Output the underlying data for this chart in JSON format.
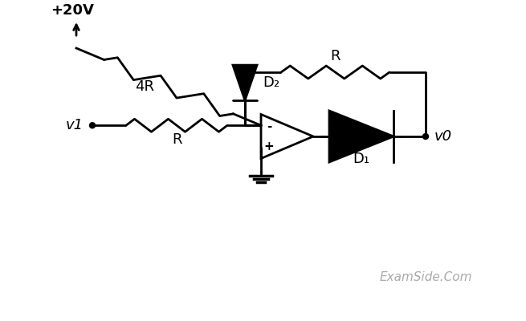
{
  "bg_color": "#ffffff",
  "line_color": "#000000",
  "text_color": "#000000",
  "watermark_color": "#aaaaaa",
  "title": "+20V",
  "label_4R": "4R",
  "label_R_horiz": "R",
  "label_R_feedback": "R",
  "label_D1": "D₁",
  "label_D2": "D₂",
  "label_v1": "v1",
  "label_v0": "v0",
  "watermark": "ExamSide.Com",
  "figsize": [
    6.55,
    4.0
  ],
  "dpi": 100
}
